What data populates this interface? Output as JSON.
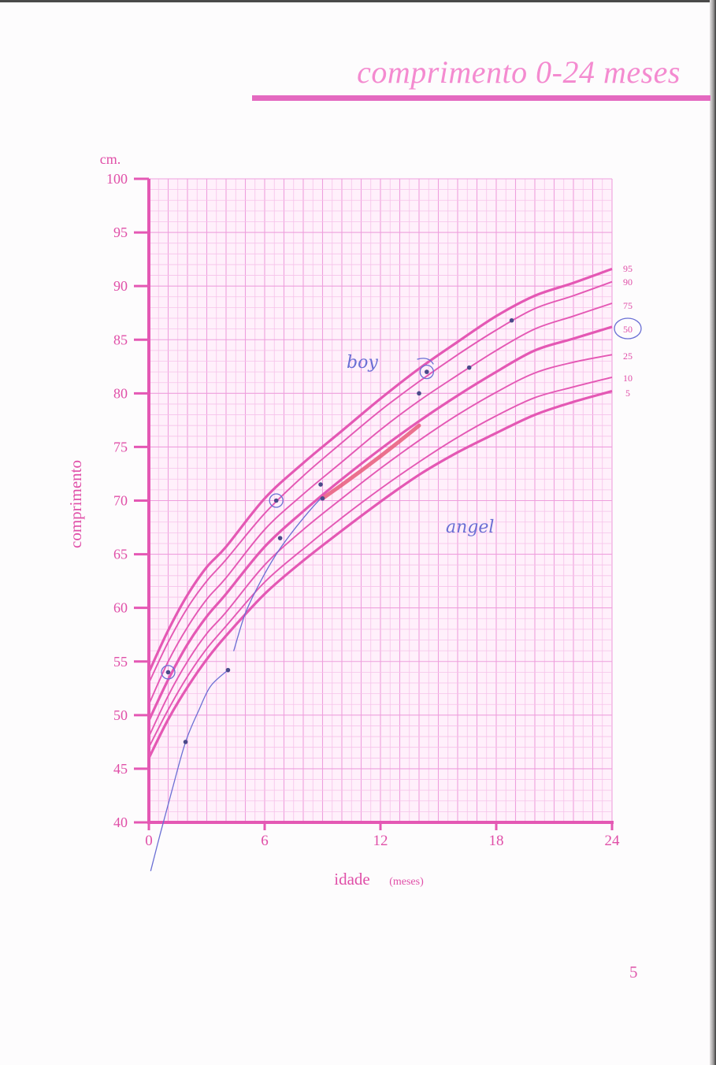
{
  "header": {
    "title": "comprimento 0-24 meses",
    "page_number": "5"
  },
  "colors": {
    "accent": "#e458b4",
    "grid_minor": "#f6c2ea",
    "grid_major": "#ee9fdd",
    "ink": "#6a6fd4",
    "red_pen": "#e85a7a"
  },
  "chart_data": {
    "type": "line",
    "title": "comprimento 0-24 meses",
    "xlabel": "idade",
    "xunit": "(meses)",
    "ylabel": "comprimento",
    "yunit": "cm.",
    "xlim": [
      0,
      24
    ],
    "ylim": [
      40,
      100
    ],
    "xticks": [
      "0",
      "6",
      "12",
      "18",
      "24"
    ],
    "yticks": [
      "40",
      "45",
      "50",
      "55",
      "60",
      "65",
      "70",
      "75",
      "80",
      "85",
      "90",
      "95",
      "100"
    ],
    "grid": true,
    "x": [
      0,
      1,
      2,
      3,
      4,
      6,
      8,
      10,
      12,
      14,
      16,
      18,
      20,
      22,
      24
    ],
    "series": [
      {
        "name": "95",
        "values": [
          54.0,
          57.9,
          61.2,
          63.8,
          65.7,
          70.2,
          73.5,
          76.5,
          79.5,
          82.3,
          84.8,
          87.2,
          89.1,
          90.3,
          91.6
        ]
      },
      {
        "name": "90",
        "values": [
          53.0,
          56.8,
          60.0,
          62.5,
          64.5,
          68.8,
          72.3,
          75.4,
          78.4,
          81.1,
          83.6,
          85.9,
          87.9,
          89.1,
          90.4
        ]
      },
      {
        "name": "75",
        "values": [
          51.0,
          55.0,
          58.2,
          60.8,
          62.8,
          67.3,
          70.6,
          73.6,
          76.6,
          79.3,
          81.7,
          84.0,
          86.0,
          87.2,
          88.4
        ]
      },
      {
        "name": "50",
        "values": [
          49.5,
          53.3,
          56.6,
          59.2,
          61.3,
          65.7,
          69.0,
          72.0,
          74.8,
          77.4,
          79.8,
          82.0,
          84.0,
          85.1,
          86.2
        ]
      },
      {
        "name": "25",
        "values": [
          48.0,
          51.8,
          55.0,
          57.6,
          59.6,
          64.0,
          67.3,
          70.2,
          73.0,
          75.6,
          78.0,
          80.1,
          81.9,
          82.9,
          83.6
        ]
      },
      {
        "name": "10",
        "values": [
          47.0,
          50.5,
          53.6,
          56.2,
          58.3,
          62.4,
          65.5,
          68.4,
          71.1,
          73.6,
          75.9,
          77.9,
          79.6,
          80.6,
          81.5
        ]
      },
      {
        "name": "5",
        "values": [
          46.0,
          49.6,
          52.6,
          55.2,
          57.4,
          61.3,
          64.4,
          67.2,
          69.9,
          72.4,
          74.5,
          76.3,
          78.0,
          79.2,
          80.2
        ]
      }
    ],
    "percentile_labels": [
      "95",
      "90",
      "75",
      "50",
      "25",
      "10",
      "5"
    ],
    "circled_percentile": "50",
    "handwriting": [
      "boy",
      "angel"
    ],
    "plotted_points": [
      {
        "x": 1.0,
        "y": 54.0,
        "circled": true
      },
      {
        "x": 6.6,
        "y": 70.0,
        "circled": true
      },
      {
        "x": 6.8,
        "y": 66.5,
        "circled": false
      },
      {
        "x": 8.9,
        "y": 71.5,
        "circled": false
      },
      {
        "x": 9.0,
        "y": 70.2,
        "circled": false
      },
      {
        "x": 14.0,
        "y": 80.0,
        "circled": false
      },
      {
        "x": 14.4,
        "y": 82.0,
        "circled": true
      },
      {
        "x": 16.6,
        "y": 82.4,
        "circled": false
      },
      {
        "x": 18.8,
        "y": 86.8,
        "circled": false
      },
      {
        "x": 1.9,
        "y": 47.5,
        "circled": false
      },
      {
        "x": 4.1,
        "y": 54.2,
        "circled": false
      }
    ],
    "red_segment": [
      {
        "x": 9.0,
        "y": 70.2
      },
      {
        "x": 14.0,
        "y": 77.0
      }
    ],
    "blue_pen_curve": [
      {
        "x": 0.1,
        "y": 35.5
      },
      {
        "x": 0.6,
        "y": 39.0
      },
      {
        "x": 1.2,
        "y": 43.0
      },
      {
        "x": 1.9,
        "y": 47.5
      },
      {
        "x": 2.6,
        "y": 50.5
      },
      {
        "x": 3.2,
        "y": 52.7
      },
      {
        "x": 4.1,
        "y": 54.2
      }
    ],
    "blue_pen_curve_2": [
      {
        "x": 4.4,
        "y": 56.0
      },
      {
        "x": 5.0,
        "y": 59.5
      },
      {
        "x": 5.8,
        "y": 62.5
      },
      {
        "x": 6.6,
        "y": 65.0
      },
      {
        "x": 7.4,
        "y": 67.0
      },
      {
        "x": 8.3,
        "y": 69.0
      },
      {
        "x": 8.9,
        "y": 70.2
      }
    ]
  }
}
